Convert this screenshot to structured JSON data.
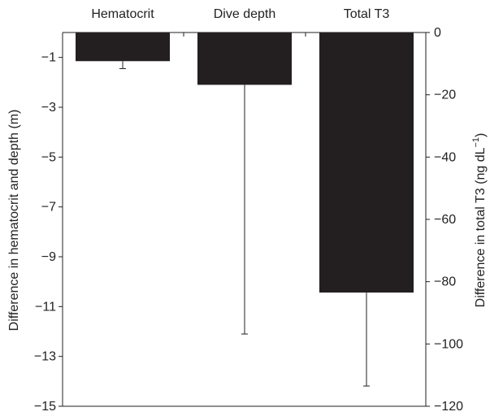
{
  "chart_data": {
    "type": "bar",
    "categories": [
      "Hematocrit",
      "Dive depth",
      "Total T3"
    ],
    "bars": [
      {
        "category": "Hematocrit",
        "axis": "left",
        "value": -1.15,
        "error_low": -1.45
      },
      {
        "category": "Dive depth",
        "axis": "left",
        "value": -2.1,
        "error_low": -12.1
      },
      {
        "category": "Total T3",
        "axis": "right",
        "value": -83.5,
        "error_low": -113.5
      }
    ],
    "left_axis": {
      "label": "Difference in hematocrit and depth (m)",
      "ylim": [
        -15,
        0
      ],
      "ticks": [
        -1,
        -3,
        -5,
        -7,
        -9,
        -11,
        -13,
        -15
      ],
      "tick_labels": [
        "−1",
        "−3",
        "−5",
        "−7",
        "−9",
        "−11",
        "−13",
        "−15"
      ]
    },
    "right_axis": {
      "label_main": "Difference in total T3 (ng dL",
      "label_sup": "−1",
      "label_close": ")",
      "ylim": [
        -120,
        0
      ],
      "ticks": [
        0,
        -20,
        -40,
        -60,
        -80,
        -100,
        -120
      ],
      "tick_labels": [
        "0",
        "−20",
        "−40",
        "−60",
        "−80",
        "−100",
        "−120"
      ]
    },
    "bar_color": "#231f20",
    "axis_color": "#231f20",
    "grid": false,
    "legend": "none"
  }
}
